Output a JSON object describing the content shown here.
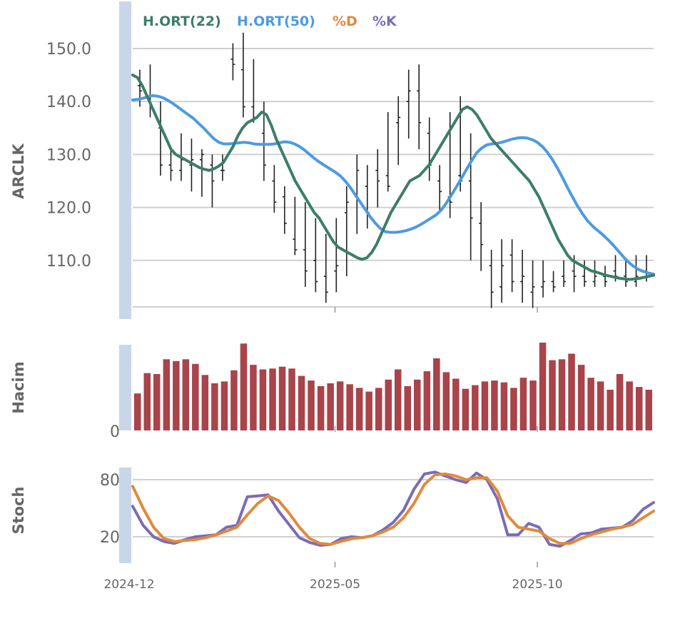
{
  "chart_data": [
    {
      "type": "ohlc",
      "ylabel": "ARCLK",
      "yticks": [
        110,
        120,
        130,
        140,
        150
      ],
      "ylim": [
        101.5,
        152.5
      ],
      "legend": {
        "placement": "top-left",
        "items": [
          {
            "label": "H.ORT(22)",
            "color": "#3c7d6b"
          },
          {
            "label": "H.ORT(50)",
            "color": "#4c9be0"
          },
          {
            "label": "%D",
            "color": "#e08a3c"
          },
          {
            "label": "%K",
            "color": "#7b6bb8"
          }
        ]
      },
      "ohlc": [
        [
          143,
          146,
          139,
          142
        ],
        [
          141,
          147,
          137,
          139
        ],
        [
          135,
          140,
          126,
          128
        ],
        [
          128,
          131,
          125,
          127
        ],
        [
          127,
          134,
          125,
          129
        ],
        [
          128,
          133,
          123,
          129
        ],
        [
          129,
          131,
          122,
          130
        ],
        [
          128,
          130,
          120,
          125
        ],
        [
          127,
          130,
          125,
          127
        ],
        [
          148,
          151,
          144,
          147
        ],
        [
          146,
          153,
          137,
          139
        ],
        [
          139,
          148,
          136,
          137
        ],
        [
          134,
          140,
          125,
          128
        ],
        [
          125,
          128,
          119,
          121
        ],
        [
          122,
          124,
          115,
          117
        ],
        [
          114,
          122,
          111,
          112
        ],
        [
          112,
          121,
          105,
          108
        ],
        [
          110,
          118,
          104,
          106
        ],
        [
          107,
          115,
          102,
          104
        ],
        [
          108,
          118,
          104,
          109
        ],
        [
          119,
          124,
          107,
          121
        ],
        [
          122,
          130,
          115,
          127
        ],
        [
          124,
          128,
          116,
          119
        ],
        [
          127,
          131,
          120,
          125
        ],
        [
          126,
          138,
          123,
          124
        ],
        [
          136,
          141,
          128,
          137
        ],
        [
          140,
          146,
          133,
          142
        ],
        [
          142,
          147,
          131,
          136
        ],
        [
          134,
          137,
          125,
          128
        ],
        [
          125,
          128,
          119,
          123
        ],
        [
          122,
          138,
          118,
          121
        ],
        [
          126,
          141,
          123,
          125
        ],
        [
          125,
          134,
          110,
          118
        ],
        [
          117,
          121,
          108,
          113
        ],
        [
          109,
          112,
          101,
          104
        ],
        [
          105,
          114,
          102,
          109
        ],
        [
          111,
          114,
          104,
          106
        ],
        [
          106,
          112,
          102,
          107
        ],
        [
          104,
          110,
          101,
          105
        ],
        [
          105,
          110,
          103,
          106
        ],
        [
          106,
          108,
          104,
          105
        ],
        [
          107,
          110,
          105,
          106
        ],
        [
          108,
          111,
          104,
          107
        ],
        [
          107,
          110,
          105,
          106
        ],
        [
          106,
          110,
          105,
          107
        ],
        [
          107,
          109,
          105,
          106
        ],
        [
          108,
          111,
          106,
          107
        ],
        [
          107,
          110,
          105,
          106
        ],
        [
          106,
          111,
          105,
          107
        ],
        [
          108,
          111,
          106,
          107
        ]
      ],
      "ma22": [
        145,
        144.5,
        143,
        141,
        139,
        137,
        135,
        133,
        131,
        130,
        129.5,
        129,
        128.5,
        128,
        127.5,
        127.2,
        127,
        127.3,
        127.8,
        128.5,
        130,
        131.5,
        133.5,
        135,
        136,
        136.5,
        137,
        138,
        137.5,
        135.5,
        133,
        131,
        129,
        127,
        125,
        123.5,
        122,
        120.5,
        119,
        118,
        116.5,
        115,
        113.5,
        112.5,
        112,
        111.5,
        111,
        110.5,
        110.2,
        110.5,
        111.5,
        113,
        115,
        117,
        119,
        120.5,
        122,
        123.5,
        125,
        125.5,
        126,
        127,
        128,
        129.5,
        131,
        132.5,
        134,
        135.5,
        137,
        138.5,
        139,
        138.5,
        137.5,
        136,
        134.5,
        133,
        132,
        131,
        130,
        129,
        128,
        127,
        126,
        125,
        123.5,
        122,
        120,
        118,
        116,
        114,
        112.5,
        111,
        110,
        109.5,
        109,
        108.5,
        108,
        107.8,
        107.5,
        107.2,
        107,
        106.8,
        106.6,
        106.5,
        106.4,
        106.5,
        106.6,
        106.8,
        107,
        107.2
      ],
      "ma50": [
        140.3,
        140.4,
        140.6,
        140.9,
        141.1,
        141,
        140.7,
        140.2,
        139.6,
        138.9,
        138.2,
        137.5,
        136.8,
        135.9,
        135,
        134,
        133,
        132.3,
        132,
        132,
        132.1,
        132.2,
        132.3,
        132.2,
        132,
        131.9,
        131.9,
        131.9,
        132,
        132.2,
        132.4,
        132.3,
        132,
        131.5,
        130.8,
        130,
        129.2,
        128.5,
        127.9,
        127.3,
        126.7,
        126,
        125,
        123.8,
        122.4,
        121,
        119.6,
        118.2,
        117,
        116,
        115.4,
        115.3,
        115.3,
        115.4,
        115.6,
        115.9,
        116.3,
        116.8,
        117.4,
        118,
        118.6,
        119.5,
        120.8,
        122.3,
        123.9,
        125.5,
        127.2,
        128.8,
        130.3,
        131.2,
        131.8,
        132,
        132.1,
        132.3,
        132.6,
        132.9,
        133.1,
        133.2,
        133.1,
        132.8,
        132.3,
        131.5,
        130.4,
        129,
        127.4,
        125.6,
        123.7,
        121.9,
        120.2,
        118.7,
        117.4,
        116.4,
        115.6,
        114.8,
        113.9,
        112.9,
        111.8,
        110.7,
        109.7,
        108.9,
        108.3,
        107.9,
        107.6,
        107.4
      ],
      "xticks": [
        {
          "label": "2024-12",
          "pos": 0
        },
        {
          "label": "2025-05",
          "pos": 0.396
        },
        {
          "label": "2025-10",
          "pos": 0.792
        }
      ]
    },
    {
      "type": "bar",
      "ylabel": "Hacim",
      "yticks": [
        0
      ],
      "values": [
        40,
        62,
        61,
        77,
        75,
        77,
        72,
        60,
        51,
        53,
        65,
        94,
        71,
        66,
        67,
        69,
        67,
        59,
        54,
        48,
        51,
        53,
        50,
        46,
        42,
        46,
        55,
        66,
        48,
        55,
        64,
        78,
        63,
        56,
        45,
        49,
        53,
        54,
        52,
        46,
        57,
        54,
        95,
        76,
        77,
        83,
        71,
        57,
        53,
        44,
        61,
        53,
        47,
        44
      ]
    },
    {
      "type": "line",
      "ylabel": "Stoch",
      "yticks": [
        20,
        80
      ],
      "ylim": [
        6,
        92
      ],
      "series": [
        {
          "name": "%K",
          "values": [
            52,
            32,
            20,
            15,
            13,
            17,
            20,
            21,
            22,
            30,
            32,
            62,
            63,
            64,
            47,
            33,
            19,
            14,
            11,
            12,
            18,
            20,
            19,
            21,
            27,
            35,
            48,
            70,
            86,
            88,
            84,
            80,
            77,
            87,
            80,
            60,
            22,
            22,
            34,
            30,
            12,
            10,
            16,
            23,
            24,
            28,
            29,
            30,
            37,
            49,
            56
          ]
        },
        {
          "name": "%D",
          "values": [
            73,
            50,
            30,
            18,
            15,
            16,
            17,
            19,
            22,
            26,
            30,
            43,
            55,
            63,
            58,
            45,
            30,
            18,
            13,
            12,
            15,
            18,
            19,
            21,
            25,
            30,
            40,
            55,
            75,
            85,
            86,
            84,
            80,
            82,
            82,
            68,
            42,
            30,
            28,
            26,
            18,
            13,
            13,
            18,
            22,
            25,
            28,
            30,
            33,
            40,
            47
          ]
        }
      ]
    }
  ]
}
